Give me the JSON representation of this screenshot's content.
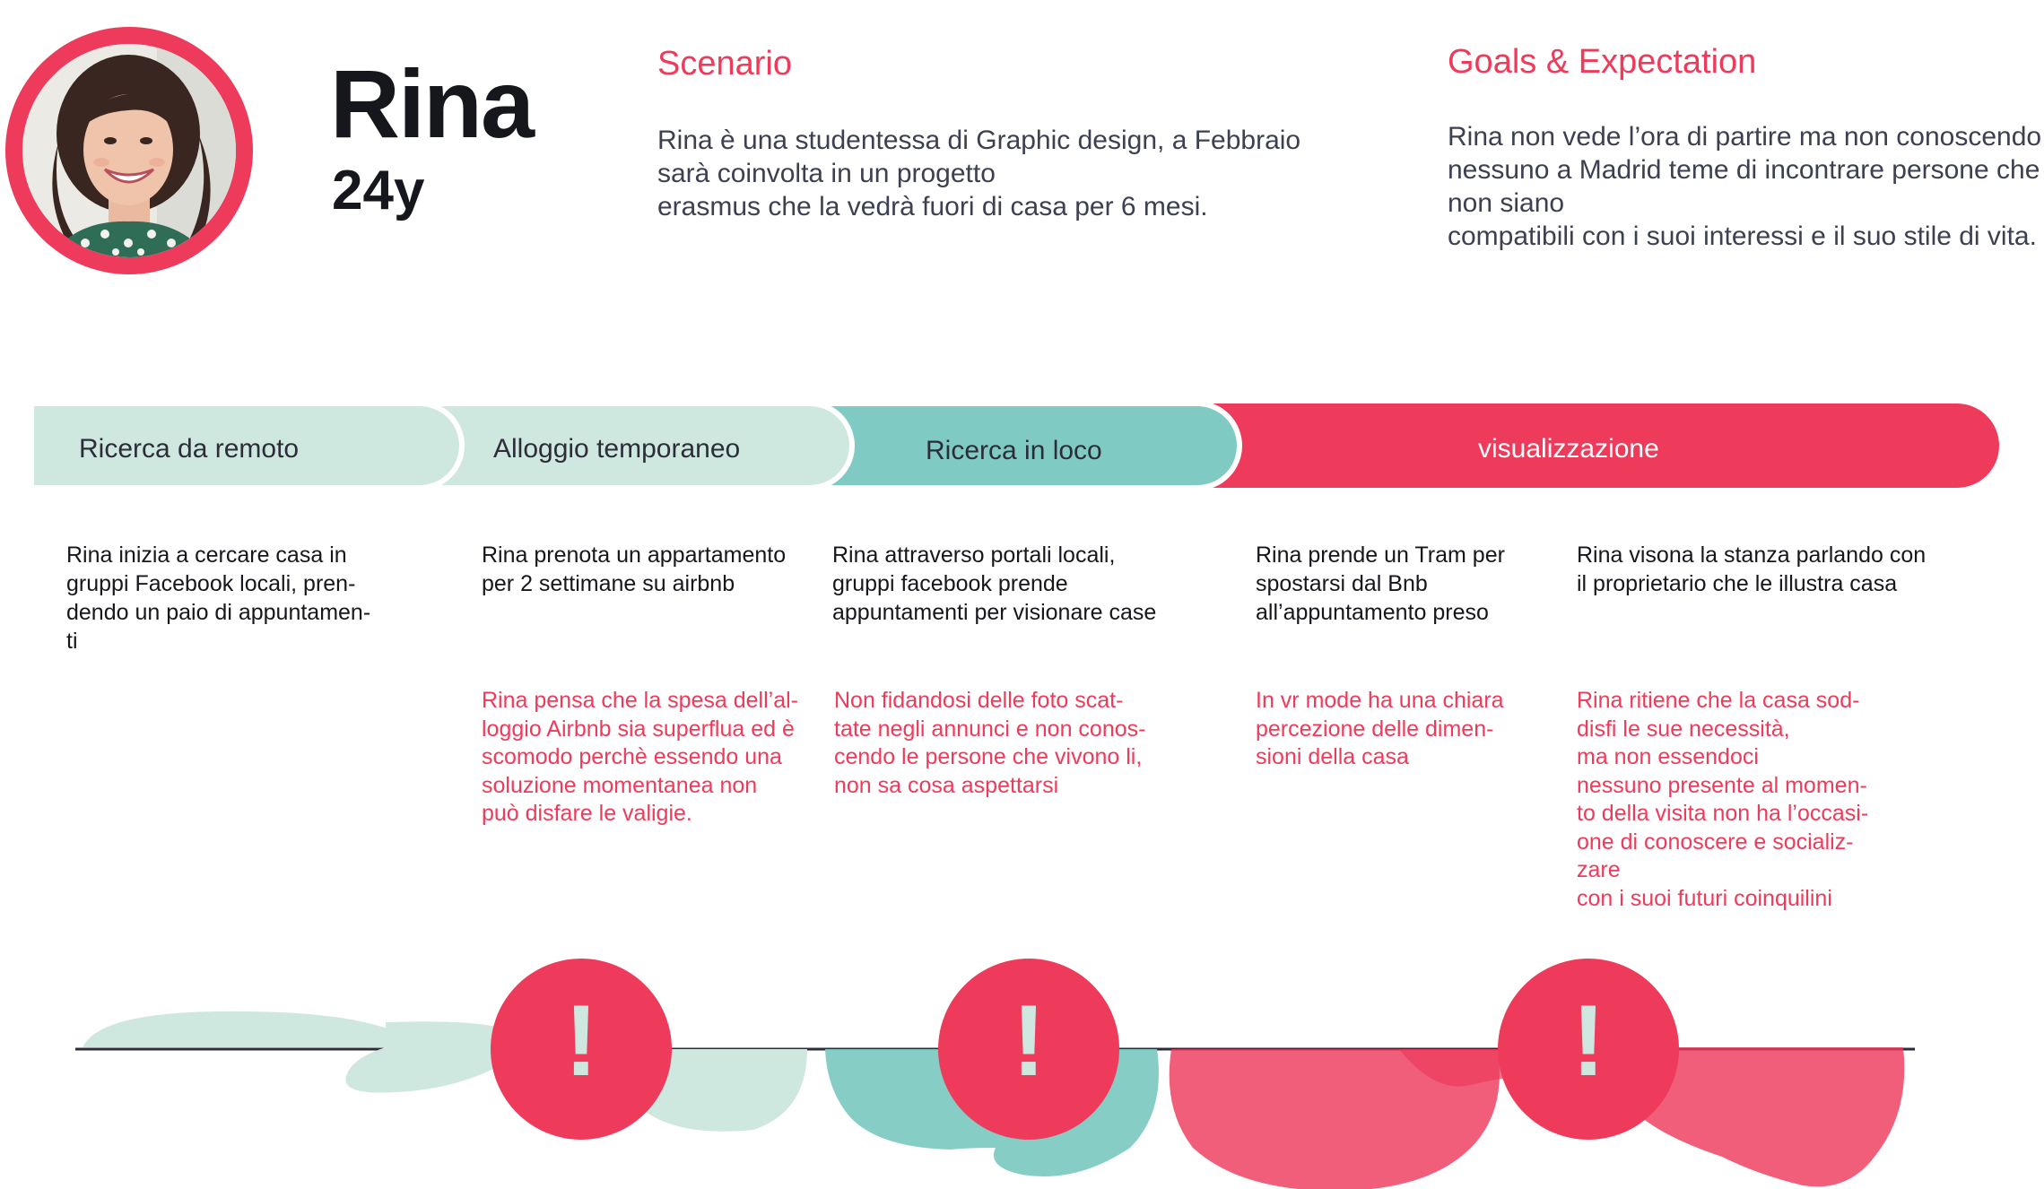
{
  "persona": {
    "name": "Rina",
    "age": "24y"
  },
  "scenario": {
    "title": "Scenario",
    "text": "Rina è una studentessa di Graphic design, a Febbraio\nsarà coinvolta in un progetto\nerasmus che la vedrà fuori di casa per 6 mesi."
  },
  "goals": {
    "title": "Goals & Expectation",
    "text": "Rina non vede l’ora di partire ma non conoscendo\nnessuno a Madrid teme di incontrare persone che\nnon siano\ncompatibili con i suoi interessi e il suo stile di vita."
  },
  "phases": [
    {
      "label": "Ricerca da remoto",
      "color": "#cfe8df",
      "text_color": "#2d3142"
    },
    {
      "label": "Alloggio temporaneo",
      "color": "#cfe8df",
      "text_color": "#2d3142"
    },
    {
      "label": "Ricerca in loco",
      "color": "#7fcac3",
      "text_color": "#2d3142"
    },
    {
      "label": "visualizzazione",
      "color": "#ee3b5b",
      "text_color": "#ffffff"
    }
  ],
  "steps": [
    {
      "action": "Rina inizia a cercare casa in\ngruppi Facebook locali, pren-\ndendo un paio di appuntamen-\nti",
      "pain": ""
    },
    {
      "action": "Rina prenota un appartamento\nper 2 settimane su airbnb",
      "pain": "Rina pensa che la spesa dell’al-\nloggio Airbnb sia superflua ed è\nscomodo perchè essendo una\nsoluzione momentanea non\npuò disfare le valigie."
    },
    {
      "action": "Rina attraverso portali locali,\ngruppi facebook prende\nappuntamenti  per visionare case",
      "pain": "Non fidandosi delle foto scat-\ntate negli annunci e non conos-\ncendo le persone che vivono li,\nnon sa cosa aspettarsi"
    },
    {
      "action": "Rina prende un Tram per\nspostarsi dal Bnb\nall’appuntamento preso",
      "pain": "In vr mode ha una chiara\npercezione delle dimen-\nsioni della casa"
    },
    {
      "action": "Rina visona la stanza parlando con\nil proprietario che le illustra casa",
      "pain": "Rina ritiene che la casa sod-\ndisfi le sue necessità,\nma non essendoci\nnessuno presente al momen-\nto della visita non ha l’occasi-\none di conoscere e socializ-\nzare\ncon i suoi futuri coinquilini"
    }
  ],
  "alerts": [
    {
      "symbol": "!"
    },
    {
      "symbol": "!"
    },
    {
      "symbol": "!"
    }
  ],
  "colors": {
    "accent": "#ee3b5b",
    "mint_light": "#cfe8df",
    "teal": "#7fcac3"
  }
}
